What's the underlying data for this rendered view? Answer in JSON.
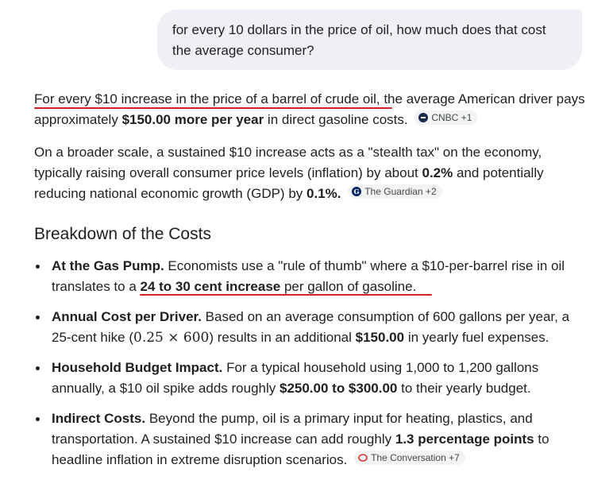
{
  "user_query": "for every 10 dollars in the price of oil, how much does that cost the average consumer?",
  "p1": {
    "lead": "For every $10 increase in the price of a barrel of crude oil,",
    "text1": " the average American driver pays approximately ",
    "bold": "$150.00 more per year",
    "text2": " in direct gasoline costs.",
    "chip": "CNBC +1"
  },
  "p2": {
    "text1": "On a broader scale, a sustained $10 increase acts as a \"stealth tax\" on the economy, typically raising overall consumer price levels (inflation) by about ",
    "bold1": "0.2%",
    "text2": " and potentially reducing national economic growth (GDP) by ",
    "bold2": "0.1%.",
    "chip": "The Guardian +2"
  },
  "heading": "Breakdown of the Costs",
  "bullets": [
    {
      "title": "At the Gas Pump.",
      "text1": " Economists use a \"rule of thumb\" where a $10-per-barrel rise in oil translates to a ",
      "bold": "24 to 30 cent increase",
      "text2": " per gallon of gasoline."
    },
    {
      "title": "Annual Cost per Driver.",
      "text1": " Based on an average consumption of 600 gallons per year, a 25-cent hike (",
      "math": "0.25 × 600",
      "text2": ") results in an additional ",
      "bold": "$150.00",
      "text3": " in yearly fuel expenses."
    },
    {
      "title": "Household Budget Impact.",
      "text1": " For a typical household using 1,000 to 1,200 gallons annually, a $10 oil spike adds roughly ",
      "bold": "$250.00 to $300.00",
      "text2": " to their yearly budget."
    },
    {
      "title": "Indirect Costs.",
      "text1": " Beyond the pump, oil is a primary input for heating, plastics, and transportation. A sustained $10 increase can add roughly ",
      "bold": "1.3 percentage points",
      "text2": " to headline inflation in extreme disruption scenarios.",
      "chip": "The Conversation +7"
    }
  ],
  "colors": {
    "annotation_red": "#d6212a",
    "bubble": "#eef0f5",
    "chip_bg": "#f1f3f4"
  }
}
